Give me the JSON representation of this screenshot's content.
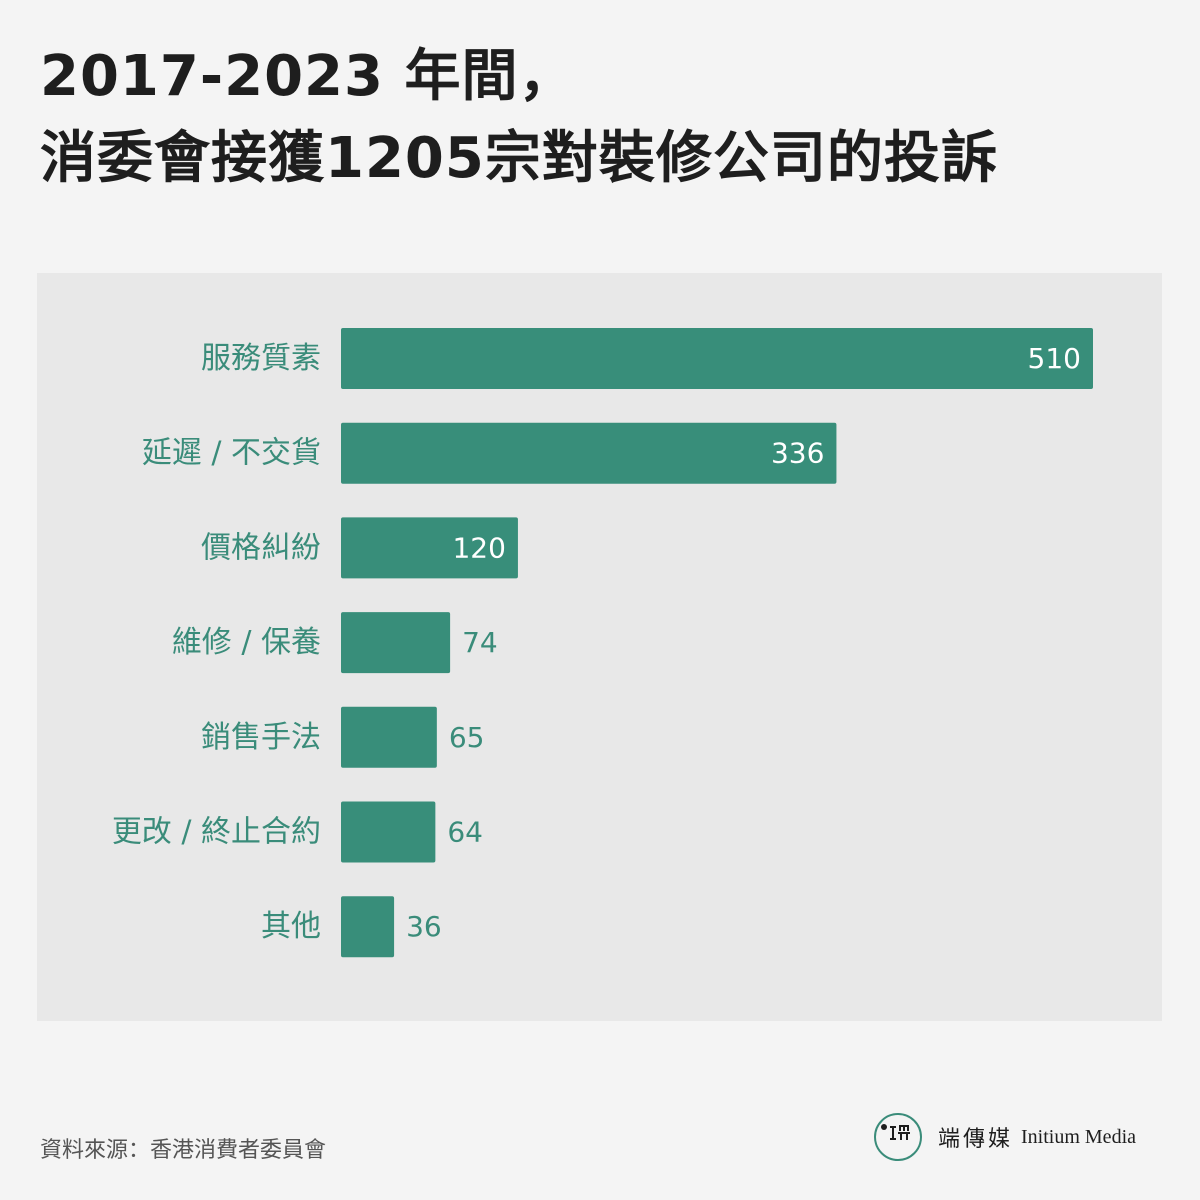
{
  "title": {
    "line1": "2017-2023 年間，",
    "line2": "消委會接獲1205宗對裝修公司的投訴"
  },
  "chart_data": {
    "type": "bar",
    "orientation": "horizontal",
    "categories": [
      "服務質素",
      "延遲 / 不交貨",
      "價格糾紛",
      "維修 / 保養",
      "銷售手法",
      "更改 / 終止合約",
      "其他"
    ],
    "values": [
      510,
      336,
      120,
      74,
      65,
      64,
      36
    ],
    "xlim": [
      0,
      510
    ],
    "grid": false,
    "legend": "none",
    "colors": {
      "bar": "#388e7a",
      "label": "#3a8c7a",
      "value_inside": "#ffffff",
      "value_outside": "#3a8c7a"
    }
  },
  "source": "資料來源：香港消費者委員會",
  "brand": {
    "logo_icon": "initium-logo-icon",
    "name_zh": "端傳媒",
    "name_en": "Initium Media"
  }
}
